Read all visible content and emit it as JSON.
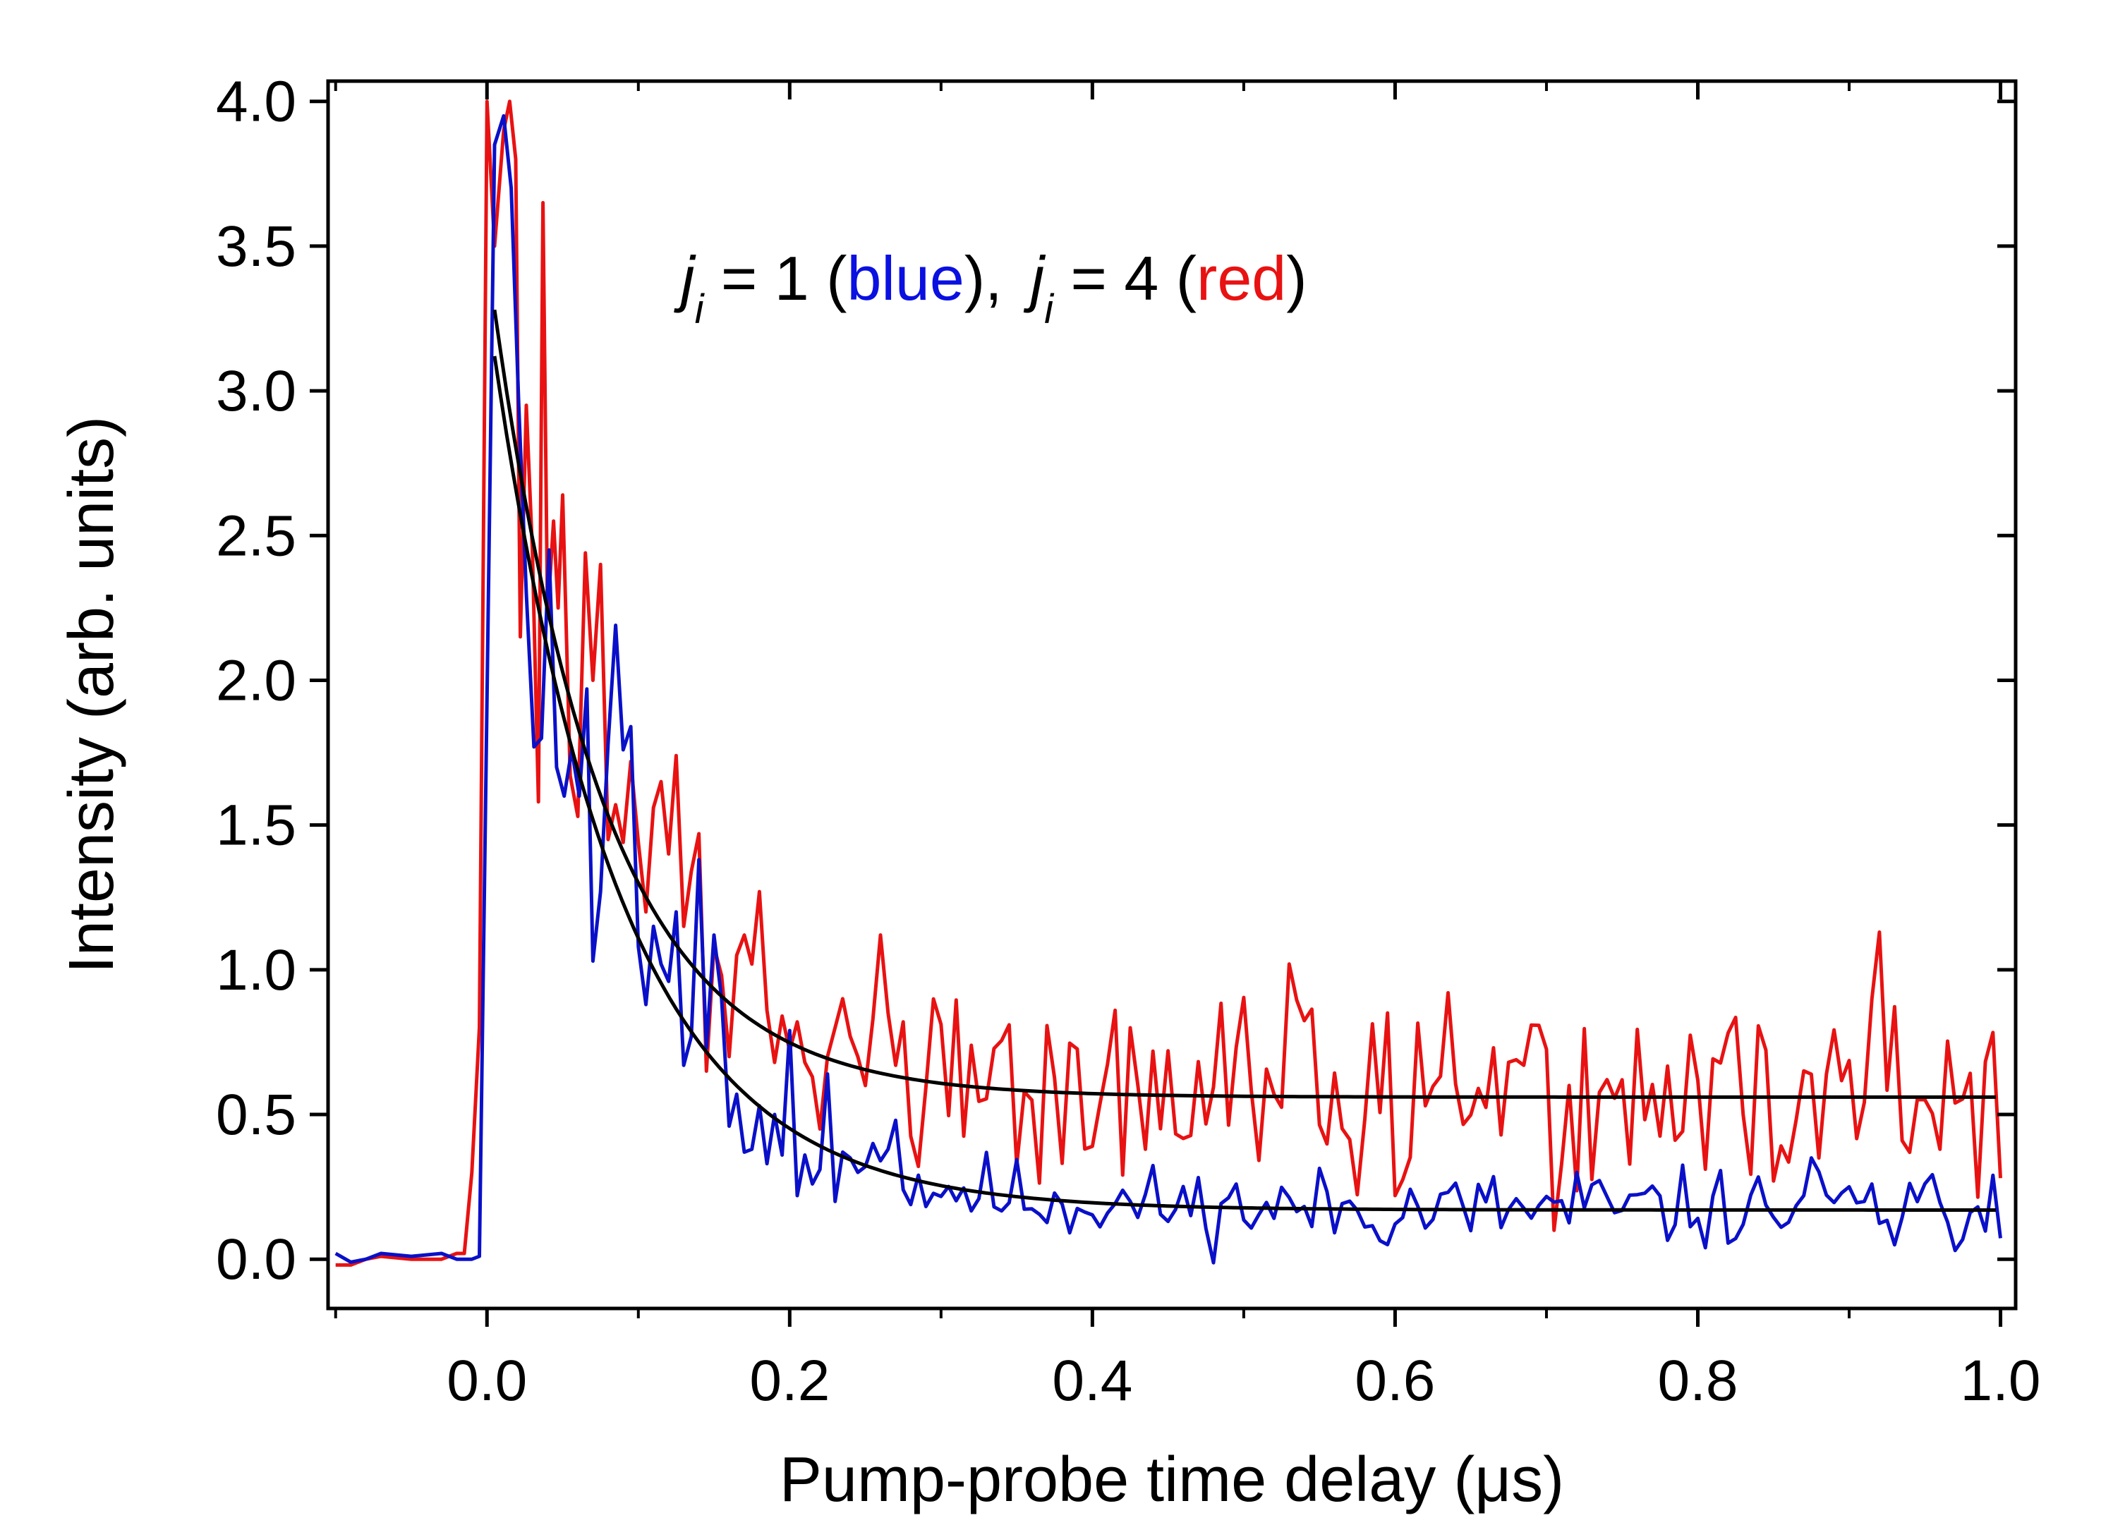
{
  "chart_data": {
    "type": "line",
    "title": "",
    "xlabel": "Pump-probe time delay (μs)",
    "ylabel": "Intensity (arb. units)",
    "xlim": [
      -0.105,
      1.01
    ],
    "ylim": [
      -0.17,
      4.07
    ],
    "x_ticks": [
      "0.0",
      "0.2",
      "0.4",
      "0.6",
      "0.8",
      "1.0"
    ],
    "y_ticks": [
      "0.0",
      "0.5",
      "1.0",
      "1.5",
      "2.0",
      "2.5",
      "3.0",
      "3.5",
      "4.0"
    ],
    "grid": false,
    "legend": {
      "position": "top-center",
      "symbol": "j",
      "subscript": "i",
      "eq1": " = 1 (",
      "name1": "blue",
      "close1": "),",
      "eq2": " = 4 (",
      "name2": "red",
      "close2": ")"
    },
    "series": [
      {
        "name": "j_i = 1",
        "color": "#0a10c8",
        "kind": "data",
        "baseline": 0.17,
        "noise": 0.07,
        "seed": 11,
        "peak_shape": [
          [
            -0.1,
            0.02
          ],
          [
            -0.09,
            -0.01
          ],
          [
            -0.08,
            0.0
          ],
          [
            -0.07,
            0.02
          ],
          [
            -0.05,
            0.01
          ],
          [
            -0.03,
            0.02
          ],
          [
            -0.02,
            0.0
          ],
          [
            -0.01,
            0.0
          ],
          [
            -0.005,
            0.01
          ],
          [
            0.005,
            3.85
          ],
          [
            0.011,
            3.95
          ],
          [
            0.016,
            3.7
          ],
          [
            0.021,
            2.95
          ],
          [
            0.026,
            2.3
          ],
          [
            0.031,
            1.77
          ],
          [
            0.036,
            1.8
          ],
          [
            0.041,
            2.45
          ],
          [
            0.046,
            1.7
          ],
          [
            0.051,
            1.6
          ],
          [
            0.056,
            1.76
          ],
          [
            0.061,
            1.6
          ],
          [
            0.066,
            1.97
          ],
          [
            0.07,
            1.03
          ],
          [
            0.075,
            1.27
          ],
          [
            0.08,
            1.78
          ],
          [
            0.085,
            2.19
          ],
          [
            0.09,
            1.76
          ],
          [
            0.095,
            1.84
          ],
          [
            0.1,
            1.08
          ],
          [
            0.105,
            0.88
          ],
          [
            0.11,
            1.15
          ],
          [
            0.115,
            1.02
          ],
          [
            0.12,
            0.96
          ],
          [
            0.125,
            1.2
          ],
          [
            0.13,
            0.67
          ],
          [
            0.135,
            0.77
          ],
          [
            0.14,
            1.38
          ],
          [
            0.145,
            0.73
          ],
          [
            0.15,
            1.12
          ],
          [
            0.155,
            0.9
          ],
          [
            0.16,
            0.46
          ],
          [
            0.165,
            0.57
          ],
          [
            0.17,
            0.37
          ],
          [
            0.175,
            0.38
          ],
          [
            0.18,
            0.53
          ],
          [
            0.185,
            0.33
          ],
          [
            0.19,
            0.5
          ],
          [
            0.195,
            0.36
          ],
          [
            0.2,
            0.79
          ],
          [
            0.205,
            0.22
          ],
          [
            0.21,
            0.36
          ],
          [
            0.215,
            0.26
          ],
          [
            0.22,
            0.31
          ],
          [
            0.225,
            0.64
          ],
          [
            0.23,
            0.2
          ],
          [
            0.235,
            0.37
          ],
          [
            0.24,
            0.35
          ],
          [
            0.245,
            0.3
          ],
          [
            0.25,
            0.32
          ],
          [
            0.255,
            0.4
          ],
          [
            0.26,
            0.34
          ],
          [
            0.265,
            0.38
          ],
          [
            0.27,
            0.48
          ],
          [
            0.275,
            0.24
          ]
        ],
        "fit": {
          "A": 2.95,
          "tau": 0.083,
          "C": 0.17,
          "t0": 0.005
        }
      },
      {
        "name": "j_i = 4",
        "color": "#e81212",
        "kind": "data",
        "baseline": 0.56,
        "noise": 0.17,
        "seed": 42,
        "peak_shape": [
          [
            -0.1,
            -0.02
          ],
          [
            -0.09,
            -0.02
          ],
          [
            -0.08,
            0.0
          ],
          [
            -0.07,
            0.01
          ],
          [
            -0.05,
            0.0
          ],
          [
            -0.03,
            0.0
          ],
          [
            -0.02,
            0.02
          ],
          [
            -0.015,
            0.02
          ],
          [
            -0.01,
            0.3
          ],
          [
            -0.005,
            0.8
          ],
          [
            0.0,
            4.0
          ],
          [
            0.005,
            3.5
          ],
          [
            0.011,
            3.9
          ],
          [
            0.015,
            4.0
          ],
          [
            0.019,
            3.8
          ],
          [
            0.022,
            2.15
          ],
          [
            0.026,
            2.95
          ],
          [
            0.03,
            2.45
          ],
          [
            0.034,
            1.58
          ],
          [
            0.037,
            3.65
          ],
          [
            0.04,
            2.22
          ],
          [
            0.044,
            2.55
          ],
          [
            0.047,
            2.25
          ],
          [
            0.05,
            2.64
          ],
          [
            0.055,
            1.67
          ],
          [
            0.06,
            1.53
          ],
          [
            0.065,
            2.44
          ],
          [
            0.07,
            2.0
          ],
          [
            0.075,
            2.4
          ],
          [
            0.08,
            1.45
          ],
          [
            0.085,
            1.57
          ],
          [
            0.09,
            1.44
          ],
          [
            0.095,
            1.72
          ],
          [
            0.1,
            1.44
          ],
          [
            0.105,
            1.2
          ],
          [
            0.11,
            1.56
          ],
          [
            0.115,
            1.65
          ],
          [
            0.12,
            1.4
          ],
          [
            0.125,
            1.74
          ],
          [
            0.13,
            1.15
          ],
          [
            0.135,
            1.34
          ],
          [
            0.14,
            1.47
          ],
          [
            0.145,
            0.65
          ],
          [
            0.15,
            1.08
          ],
          [
            0.155,
            0.98
          ],
          [
            0.16,
            0.7
          ],
          [
            0.165,
            1.05
          ],
          [
            0.17,
            1.12
          ],
          [
            0.175,
            1.02
          ],
          [
            0.18,
            1.27
          ],
          [
            0.185,
            0.86
          ],
          [
            0.19,
            0.68
          ],
          [
            0.195,
            0.84
          ],
          [
            0.2,
            0.72
          ],
          [
            0.205,
            0.82
          ],
          [
            0.21,
            0.68
          ],
          [
            0.215,
            0.63
          ],
          [
            0.22,
            0.45
          ],
          [
            0.225,
            0.7
          ],
          [
            0.23,
            0.8
          ],
          [
            0.235,
            0.9
          ],
          [
            0.24,
            0.77
          ],
          [
            0.245,
            0.7
          ],
          [
            0.25,
            0.6
          ],
          [
            0.255,
            0.83
          ],
          [
            0.26,
            1.12
          ],
          [
            0.265,
            0.85
          ],
          [
            0.27,
            0.67
          ],
          [
            0.275,
            0.82
          ]
        ],
        "fit": {
          "A": 2.72,
          "tau": 0.073,
          "C": 0.56,
          "t0": 0.005
        }
      }
    ],
    "fit_color": "#000000",
    "late_spikes": [
      {
        "series": 1,
        "x": 0.6,
        "y": 0.22
      },
      {
        "series": 1,
        "x": 0.705,
        "y": 0.1
      },
      {
        "series": 1,
        "x": 0.92,
        "y": 1.13
      },
      {
        "series": 1,
        "x": 0.96,
        "y": 0.38
      },
      {
        "series": 1,
        "x": 1.0,
        "y": 0.28
      },
      {
        "series": 1,
        "x": 0.53,
        "y": 1.02
      },
      {
        "series": 0,
        "x": 0.72,
        "y": 0.3
      },
      {
        "series": 0,
        "x": 0.875,
        "y": 0.35
      },
      {
        "series": 0,
        "x": 0.93,
        "y": 0.05
      },
      {
        "series": 0,
        "x": 0.995,
        "y": 0.29
      }
    ]
  }
}
